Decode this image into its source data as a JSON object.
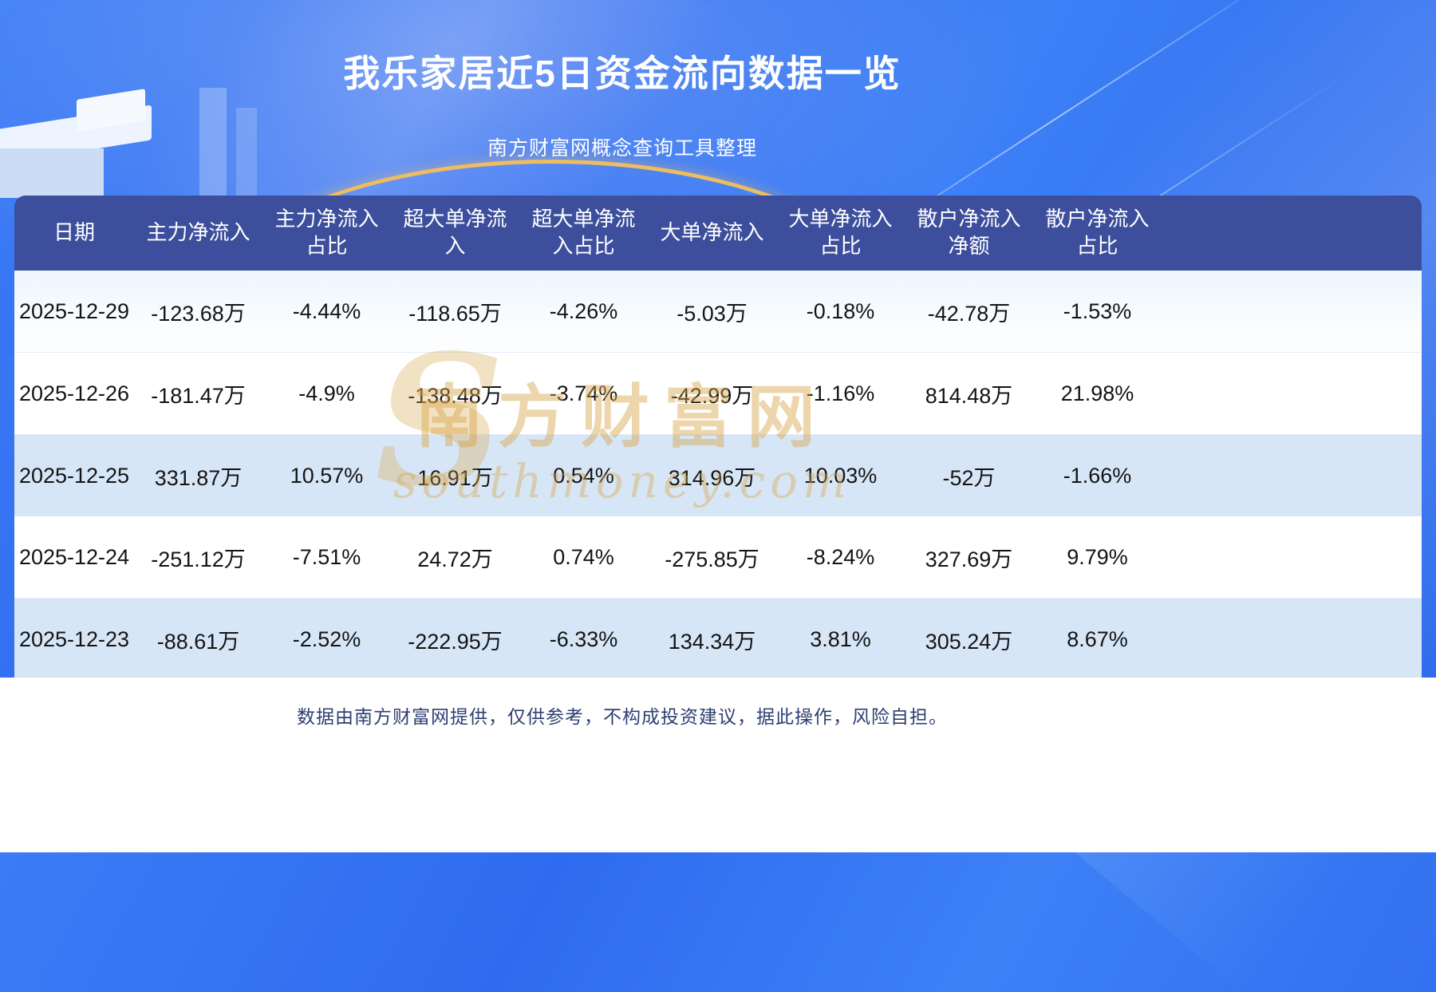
{
  "page": {
    "title": "我乐家居近5日资金流向数据一览",
    "subtitle": "南方财富网概念查询工具整理",
    "disclaimer": "数据由南方财富网提供，仅供参考，不构成投资建议，据此操作，风险自担。"
  },
  "watermark": {
    "cn": "南方财富网",
    "en": "southmoney.com",
    "glyph": "S"
  },
  "colors": {
    "header_bg": "#3d4f9c",
    "row_alt": "#d7e6f7",
    "gold": "#eebd62",
    "background_blue": "#2f6bf0",
    "disclaimer_text": "#2e3f72"
  },
  "chart_data": {
    "type": "table",
    "title": "我乐家居近5日资金流向数据一览",
    "columns": [
      "日期",
      "主力净流入",
      "主力净流入占比",
      "超大单净流入",
      "超大单净流入占比",
      "大单净流入",
      "大单净流入占比",
      "散户净流入净额",
      "散户净流入占比"
    ],
    "rows": [
      [
        "2025-12-29",
        "-123.68万",
        "-4.44%",
        "-118.65万",
        "-4.26%",
        "-5.03万",
        "-0.18%",
        "-42.78万",
        "-1.53%"
      ],
      [
        "2025-12-26",
        "-181.47万",
        "-4.9%",
        "-138.48万",
        "-3.74%",
        "-42.99万",
        "-1.16%",
        "814.48万",
        "21.98%"
      ],
      [
        "2025-12-25",
        "331.87万",
        "10.57%",
        "16.91万",
        "0.54%",
        "314.96万",
        "10.03%",
        "-52万",
        "-1.66%"
      ],
      [
        "2025-12-24",
        "-251.12万",
        "-7.51%",
        "24.72万",
        "0.74%",
        "-275.85万",
        "-8.24%",
        "327.69万",
        "9.79%"
      ],
      [
        "2025-12-23",
        "-88.61万",
        "-2.52%",
        "-222.95万",
        "-6.33%",
        "134.34万",
        "3.81%",
        "305.24万",
        "8.67%"
      ]
    ]
  }
}
